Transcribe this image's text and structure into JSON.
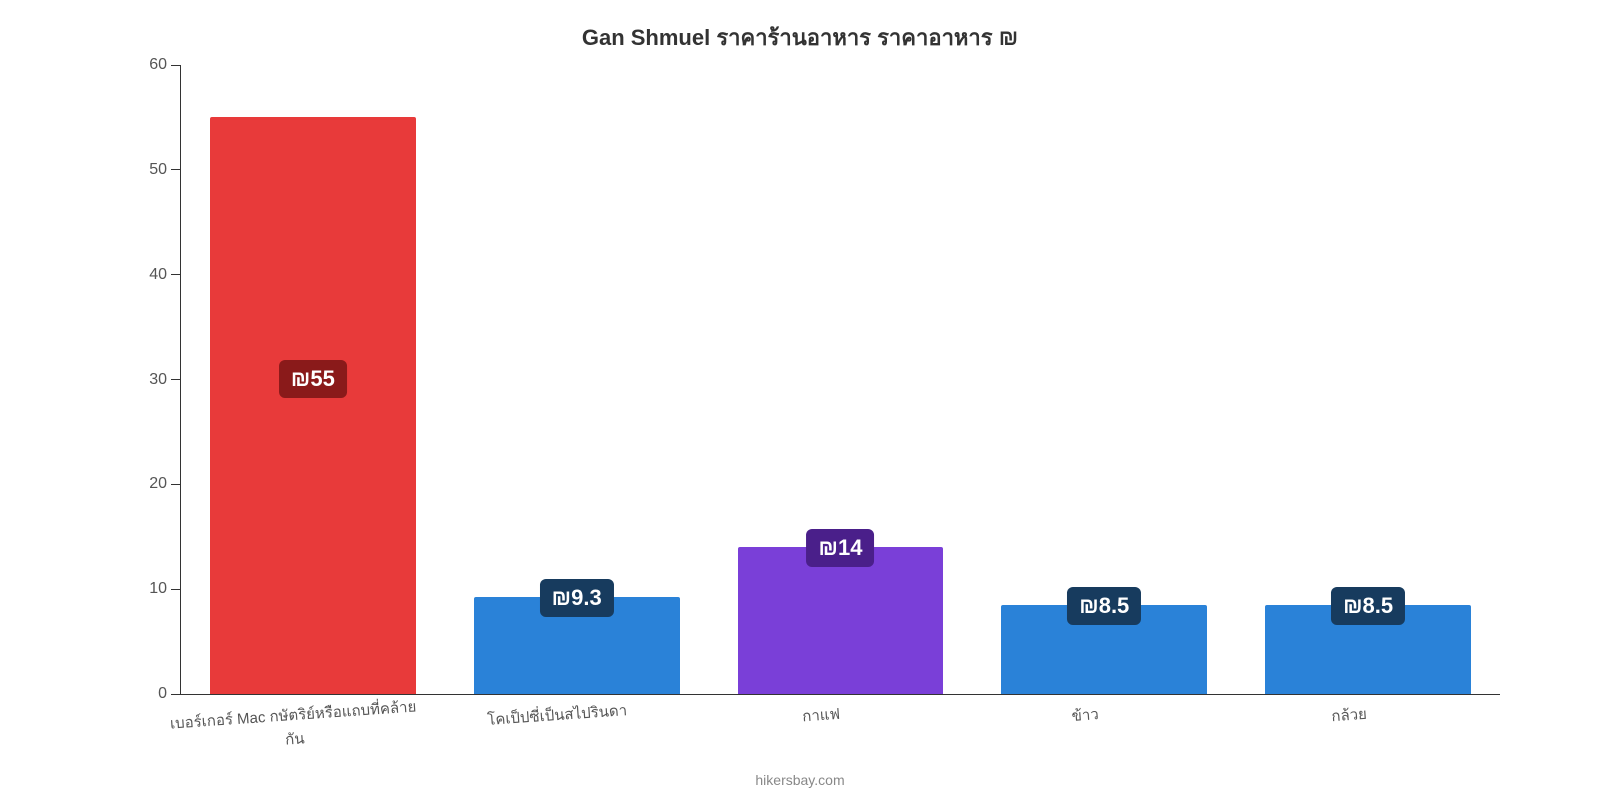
{
  "chart": {
    "type": "bar",
    "title": "Gan Shmuel ราคาร้านอาหาร ราคาอาหาร ₪",
    "title_fontsize": 22,
    "title_color": "#333333",
    "background_color": "#ffffff",
    "axis_color": "#333333",
    "tick_label_color": "#555555",
    "tick_label_fontsize": 16,
    "xlabel_fontsize": 15,
    "xlabel_color": "#555555",
    "xlabel_rotation_deg": -4,
    "currency_symbol": "₪",
    "ylim": [
      0,
      60
    ],
    "yticks": [
      0,
      10,
      20,
      30,
      40,
      50,
      60
    ],
    "bar_width_pct": 78,
    "categories": [
      "เบอร์เกอร์ Mac กษัตริย์หรือแถบที่คล้ายกัน",
      "โคเป็ปซี่เป็นสไปรินดา",
      "กาแฟ",
      "ข้าว",
      "กล้วย"
    ],
    "values": [
      55,
      9.3,
      14,
      8.5,
      8.5
    ],
    "value_labels": [
      "₪55",
      "₪9.3",
      "₪14",
      "₪8.5",
      "₪8.5"
    ],
    "bar_colors": [
      "#e83a3a",
      "#2a82d8",
      "#7a3fd8",
      "#2a82d8",
      "#2a82d8"
    ],
    "badge_colors": [
      "#8a1a1a",
      "#173b5e",
      "#4a1f8a",
      "#173b5e",
      "#173b5e"
    ],
    "badge_text_color": "#ffffff",
    "badge_fontsize": 22,
    "attribution": "hikersbay.com",
    "attribution_color": "#888888",
    "attribution_fontsize": 14
  }
}
